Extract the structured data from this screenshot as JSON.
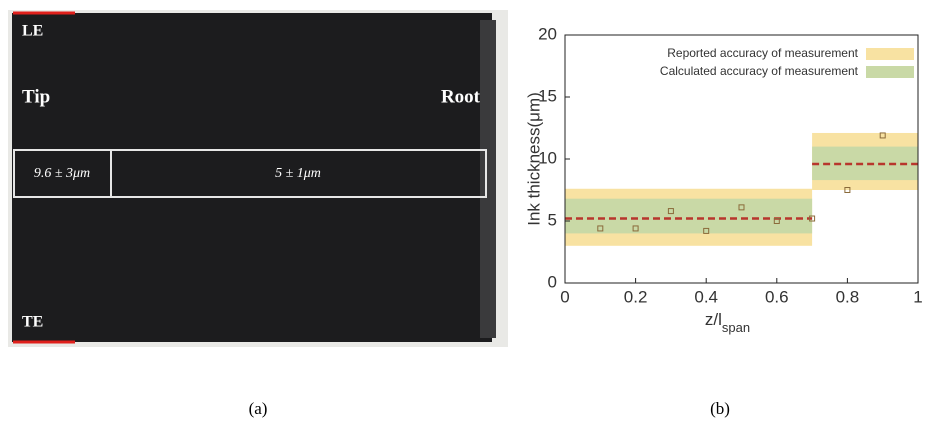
{
  "photo": {
    "le": "LE",
    "tip": "Tip",
    "root": "Root",
    "te": "TE",
    "cells": [
      "9.6 ± 3μm",
      "5 ± 1μm"
    ]
  },
  "captions": [
    "(a)",
    "(b)"
  ],
  "chart_data": {
    "type": "scatter",
    "ylabel": "Ink thickness(μm)",
    "xlabel": "z/l",
    "xlabel_sub": "span",
    "xlim": [
      0,
      1
    ],
    "xticks": [
      0,
      0.2,
      0.4,
      0.6,
      0.8,
      1
    ],
    "ylim": [
      0,
      20
    ],
    "yticks": [
      0,
      5,
      10,
      15,
      20
    ],
    "bands": [
      {
        "name": "Reported accuracy of measurement",
        "color": "#f8e2a2",
        "segments": [
          {
            "x": [
              0,
              0.7
            ],
            "range": [
              3,
              7.6
            ]
          },
          {
            "x": [
              0.7,
              1
            ],
            "range": [
              7.5,
              12.1
            ]
          }
        ]
      },
      {
        "name": "Calculated accuracy of measurement",
        "color": "#c9d9a6",
        "segments": [
          {
            "x": [
              0,
              0.7
            ],
            "range": [
              4,
              6.8
            ]
          },
          {
            "x": [
              0.7,
              1
            ],
            "range": [
              8.3,
              11
            ]
          }
        ]
      }
    ],
    "mean_lines": [
      {
        "x": [
          0,
          0.7
        ],
        "value": 5.2
      },
      {
        "x": [
          0.7,
          1
        ],
        "value": 9.6
      }
    ],
    "mean_color": "#b8362c",
    "points": {
      "x": [
        0.1,
        0.2,
        0.3,
        0.4,
        0.5,
        0.6,
        0.7,
        0.8,
        0.9
      ],
      "y": [
        4.4,
        4.4,
        5.8,
        4.2,
        6.1,
        5.0,
        5.2,
        7.5,
        11.9
      ],
      "color": "#8a6a3a"
    }
  }
}
